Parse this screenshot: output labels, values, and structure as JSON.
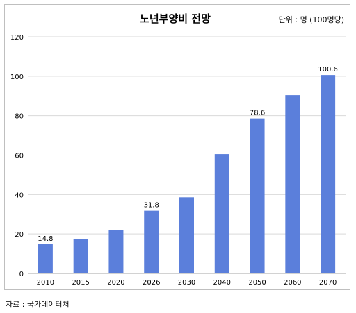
{
  "chart_data": {
    "type": "bar",
    "title": "노년부양비 전망",
    "unit_note": "단위 : 명 (100명당)",
    "categories": [
      "2010",
      "2015",
      "2020",
      "2026",
      "2030",
      "2040",
      "2050",
      "2060",
      "2070"
    ],
    "values": [
      14.8,
      17.5,
      22.0,
      31.8,
      38.6,
      60.5,
      78.6,
      90.4,
      100.6
    ],
    "data_labels": {
      "2010": "14.8",
      "2026": "31.8",
      "2050": "78.6",
      "2070": "100.6"
    },
    "ylim": [
      0,
      120
    ],
    "yticks": [
      "0",
      "20",
      "40",
      "60",
      "80",
      "100",
      "120"
    ],
    "xlabel": "",
    "ylabel": "",
    "grid": true,
    "bar_color": "#5b7fdb",
    "grid_color": "#d9d9d9"
  },
  "source": "자료 : 국가데이터처"
}
